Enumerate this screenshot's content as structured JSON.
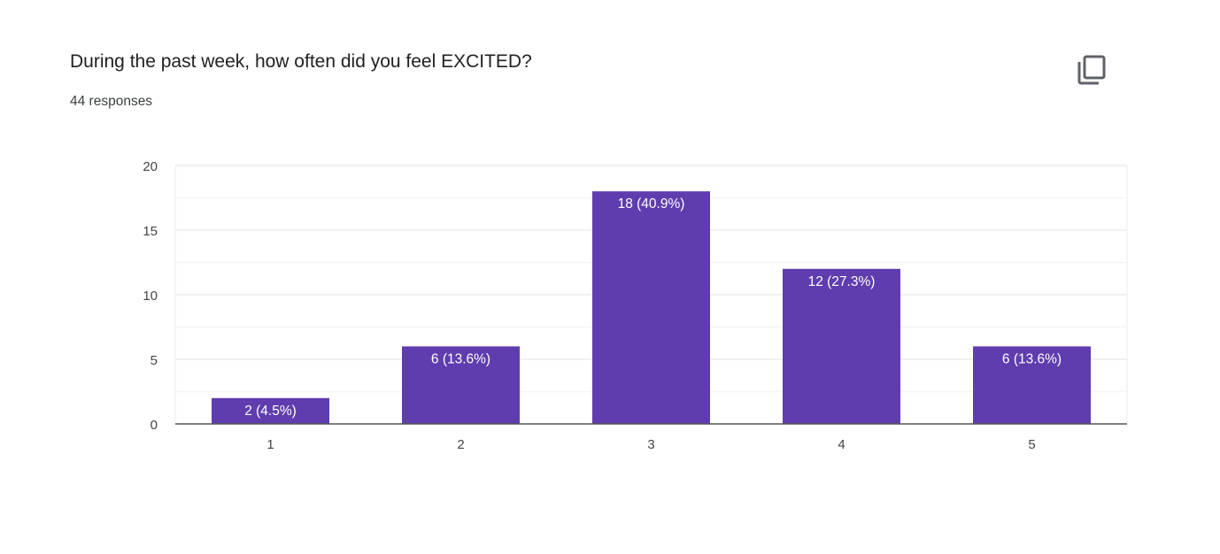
{
  "header": {
    "title": "During the past week, how often did you feel EXCITED?",
    "responses": "44 responses",
    "copy_icon": "copy-icon"
  },
  "chart_data": {
    "type": "bar",
    "categories": [
      "1",
      "2",
      "3",
      "4",
      "5"
    ],
    "values": [
      2,
      6,
      18,
      12,
      6
    ],
    "data_labels": [
      "2 (4.5%)",
      "6 (13.6%)",
      "18 (40.9%)",
      "12 (27.3%)",
      "6 (13.6%)"
    ],
    "title": "During the past week, how often did you feel EXCITED?",
    "xlabel": "",
    "ylabel": "",
    "ylim": [
      0,
      20
    ],
    "yticks": [
      0,
      5,
      10,
      15,
      20
    ],
    "grid": true,
    "bar_color": "#5f3dae"
  }
}
